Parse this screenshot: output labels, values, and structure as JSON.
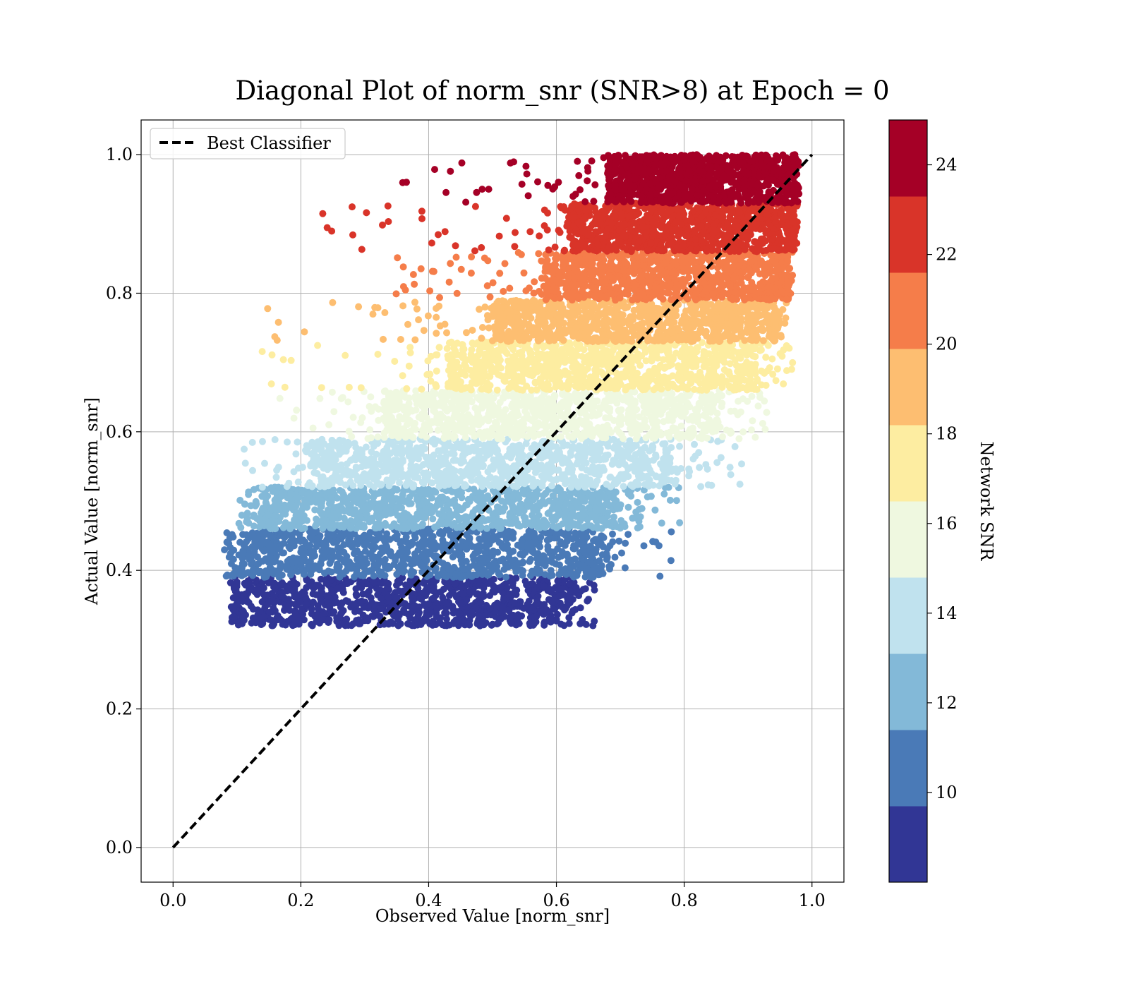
{
  "chart_data": {
    "type": "scatter",
    "title": "Diagonal Plot of norm_snr (SNR>8) at Epoch = 0",
    "xlabel": "Observed Value [norm_snr]",
    "ylabel": "Actual Value [norm_snr]",
    "xlim": [
      -0.05,
      1.05
    ],
    "ylim": [
      -0.05,
      1.05
    ],
    "xticks": [
      "0.0",
      "0.2",
      "0.4",
      "0.6",
      "0.8",
      "1.0"
    ],
    "yticks": [
      "0.0",
      "0.2",
      "0.4",
      "0.6",
      "0.8",
      "1.0"
    ],
    "grid": true,
    "legend": {
      "placement": "upper-left",
      "entries": [
        "Best Classifier"
      ]
    },
    "reference_line": {
      "name": "Best Classifier",
      "style": "dashed",
      "color": "#000000",
      "x": [
        0,
        1
      ],
      "y": [
        0,
        1
      ]
    },
    "colorbar": {
      "label": "Network SNR",
      "min": 8,
      "max": 25,
      "ticks": [
        "10",
        "12",
        "14",
        "16",
        "18",
        "20",
        "22",
        "24"
      ],
      "tick_values": [
        10,
        12,
        14,
        16,
        18,
        20,
        22,
        24
      ],
      "colors": [
        "#313695",
        "#4a7ab7",
        "#83b9d8",
        "#c0e2ee",
        "#eff8e0",
        "#fdeda1",
        "#fdbe71",
        "#f57d4a",
        "#d93429",
        "#a50026"
      ]
    },
    "series": [
      {
        "snr_band": [
          8.0,
          9.7
        ],
        "actual_range": [
          0.32,
          0.39
        ],
        "observed_core": [
          0.1,
          0.62
        ],
        "observed_extent": [
          0.09,
          0.66
        ],
        "color": "#313695"
      },
      {
        "snr_band": [
          9.7,
          11.4
        ],
        "actual_range": [
          0.39,
          0.46
        ],
        "observed_core": [
          0.11,
          0.67
        ],
        "observed_extent": [
          0.08,
          0.78
        ],
        "color": "#4a7ab7"
      },
      {
        "snr_band": [
          11.4,
          13.1
        ],
        "actual_range": [
          0.46,
          0.52
        ],
        "observed_core": [
          0.14,
          0.7
        ],
        "observed_extent": [
          0.1,
          0.8
        ],
        "color": "#83b9d8"
      },
      {
        "snr_band": [
          13.1,
          14.8
        ],
        "actual_range": [
          0.52,
          0.59
        ],
        "observed_core": [
          0.22,
          0.78
        ],
        "observed_extent": [
          0.11,
          0.89
        ],
        "color": "#c0e2ee"
      },
      {
        "snr_band": [
          14.8,
          16.5
        ],
        "actual_range": [
          0.59,
          0.66
        ],
        "observed_core": [
          0.33,
          0.85
        ],
        "observed_extent": [
          0.15,
          0.93
        ],
        "color": "#eff8e0"
      },
      {
        "snr_band": [
          16.5,
          18.2
        ],
        "actual_range": [
          0.66,
          0.73
        ],
        "observed_core": [
          0.43,
          0.91
        ],
        "observed_extent": [
          0.13,
          0.97
        ],
        "color": "#fdeda1"
      },
      {
        "snr_band": [
          18.2,
          19.9
        ],
        "actual_range": [
          0.73,
          0.79
        ],
        "observed_core": [
          0.5,
          0.94
        ],
        "observed_extent": [
          0.14,
          0.96
        ],
        "color": "#fdbe71"
      },
      {
        "snr_band": [
          19.9,
          21.6
        ],
        "actual_range": [
          0.79,
          0.86
        ],
        "observed_core": [
          0.58,
          0.96
        ],
        "observed_extent": [
          0.33,
          0.97
        ],
        "color": "#f57d4a"
      },
      {
        "snr_band": [
          21.6,
          23.3
        ],
        "actual_range": [
          0.86,
          0.93
        ],
        "observed_core": [
          0.62,
          0.97
        ],
        "observed_extent": [
          0.23,
          0.98
        ],
        "color": "#d93429"
      },
      {
        "snr_band": [
          23.3,
          25.0
        ],
        "actual_range": [
          0.93,
          1.0
        ],
        "observed_core": [
          0.68,
          0.97
        ],
        "observed_extent": [
          0.27,
          0.98
        ],
        "color": "#a50026"
      }
    ]
  }
}
